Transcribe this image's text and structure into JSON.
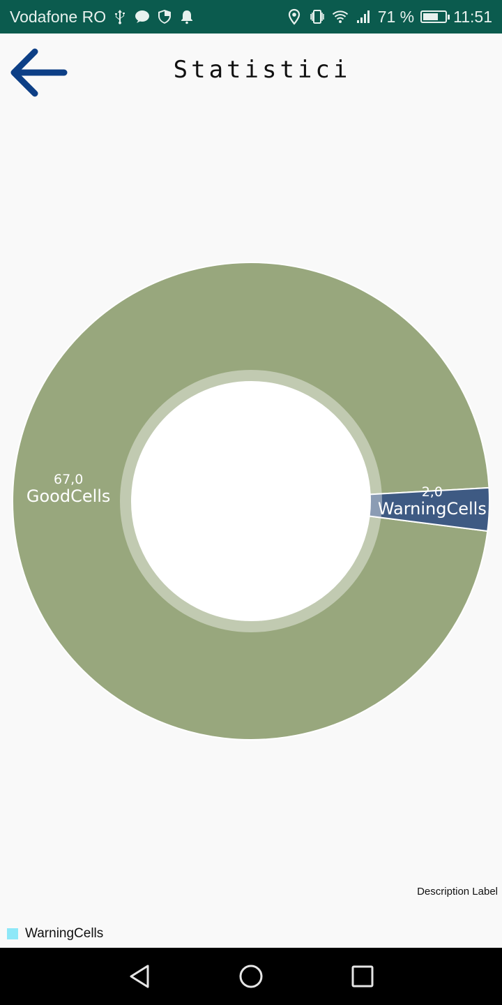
{
  "status_bar": {
    "carrier": "Vodafone RO",
    "icons_left": [
      "usb-icon",
      "chat-icon",
      "shield-icon",
      "notification-bell-icon"
    ],
    "icons_right": [
      "location-icon",
      "vibrate-icon",
      "wifi-icon",
      "signal-icon"
    ],
    "battery_percent": "71 %",
    "battery_level": 0.71,
    "time": "11:51"
  },
  "header": {
    "title": "Statistici",
    "back_icon": "arrow-left-icon"
  },
  "chart_data": {
    "type": "pie",
    "donut": true,
    "slices": [
      {
        "label": "GoodCells",
        "value": 67.0,
        "value_text": "67,0",
        "color": "#98a77d"
      },
      {
        "label": "WarningCells",
        "value": 2.0,
        "value_text": "2,0",
        "color": "#3e5a83"
      }
    ],
    "hole_color": "#ffffff",
    "hole_ring_color": "#c3cdb6",
    "description": "Description Label",
    "legend": {
      "placement": "bottom-left",
      "entries": [
        {
          "label": "WarningCells",
          "color": "#8ee8f8"
        }
      ]
    }
  },
  "nav_bar": {
    "back": "triangle-back-icon",
    "home": "circle-home-icon",
    "recents": "square-recents-icon"
  }
}
